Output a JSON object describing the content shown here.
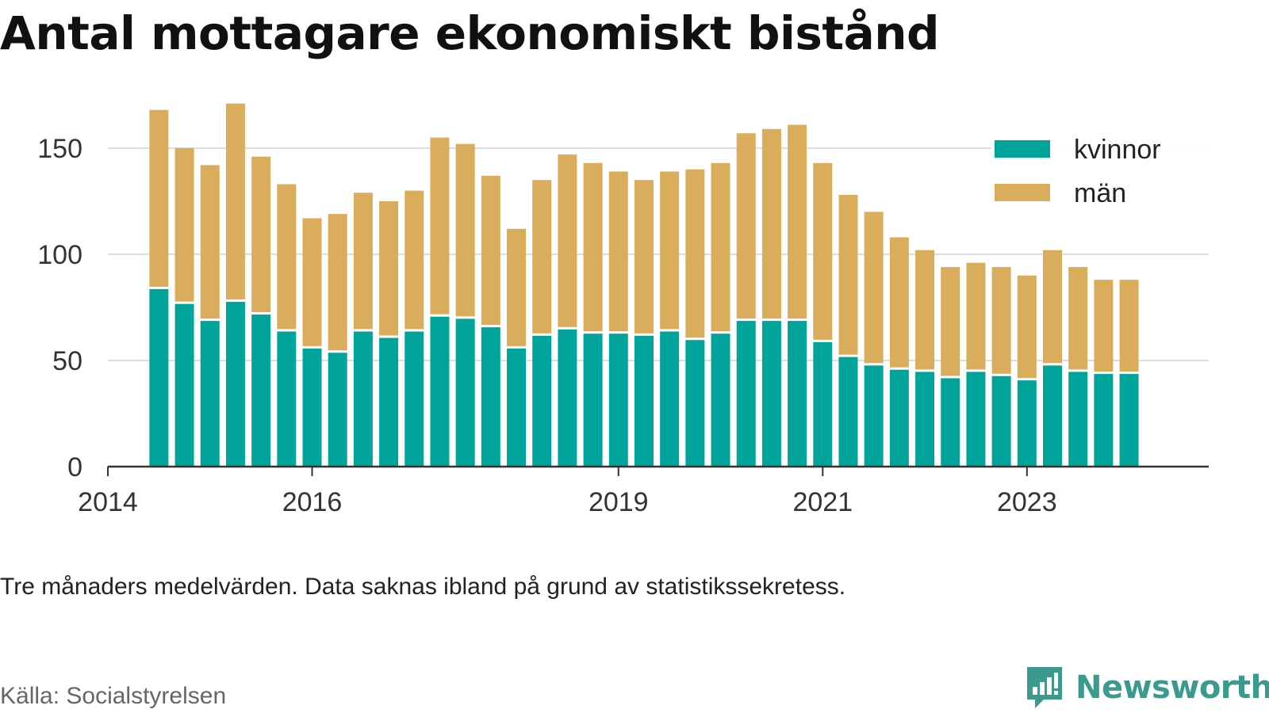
{
  "header": {
    "title": "Antal mottagare ekonomiskt bistånd"
  },
  "footer": {
    "note": "Tre månaders medelvärden. Data saknas ibland på grund av statistikssekretess.",
    "source": "Källa: Socialstyrelsen",
    "brand": "Newsworthy"
  },
  "colors": {
    "kvinnor": "#00a49a",
    "man": "#d9ad5b",
    "grid": "#dddddd",
    "axis": "#333333",
    "text": "#333333",
    "brand": "#3b9a8e"
  },
  "chart_data": {
    "type": "bar",
    "stacked": true,
    "title": "Antal mottagare ekonomiskt bistånd",
    "xlabel": "",
    "ylabel": "",
    "ylim": [
      0,
      175
    ],
    "yticks": [
      0,
      50,
      100,
      150
    ],
    "xlim": [
      2014,
      2024.78
    ],
    "xticks": [
      2014,
      2016,
      2019,
      2021,
      2023
    ],
    "grid": true,
    "legend_position": "top-right",
    "x": [
      2014.5,
      2014.75,
      2015,
      2015.25,
      2015.5,
      2015.75,
      2016,
      2016.25,
      2016.5,
      2016.75,
      2017,
      2017.25,
      2017.5,
      2017.75,
      2018,
      2018.25,
      2018.5,
      2018.75,
      2019,
      2019.25,
      2019.5,
      2019.75,
      2020,
      2020.25,
      2020.5,
      2020.75,
      2021,
      2021.25,
      2021.5,
      2021.75,
      2022,
      2022.25,
      2022.5,
      2022.75,
      2023,
      2023.25,
      2023.5,
      2023.75,
      2024,
      2024.25
    ],
    "series": [
      {
        "name": "kvinnor",
        "values": [
          84,
          77,
          69,
          78,
          72,
          64,
          56,
          54,
          64,
          61,
          64,
          71,
          70,
          66,
          56,
          62,
          65,
          63,
          63,
          62,
          64,
          60,
          63,
          69,
          69,
          69,
          59,
          52,
          48,
          46,
          45,
          42,
          45,
          43,
          41,
          48,
          45,
          44,
          44,
          0
        ]
      },
      {
        "name": "män",
        "values": [
          84,
          73,
          73,
          93,
          74,
          69,
          61,
          65,
          65,
          64,
          66,
          84,
          82,
          71,
          56,
          73,
          82,
          80,
          76,
          73,
          75,
          80,
          80,
          88,
          90,
          92,
          84,
          76,
          72,
          62,
          57,
          52,
          51,
          51,
          49,
          54,
          49,
          44,
          44,
          0
        ]
      }
    ]
  }
}
